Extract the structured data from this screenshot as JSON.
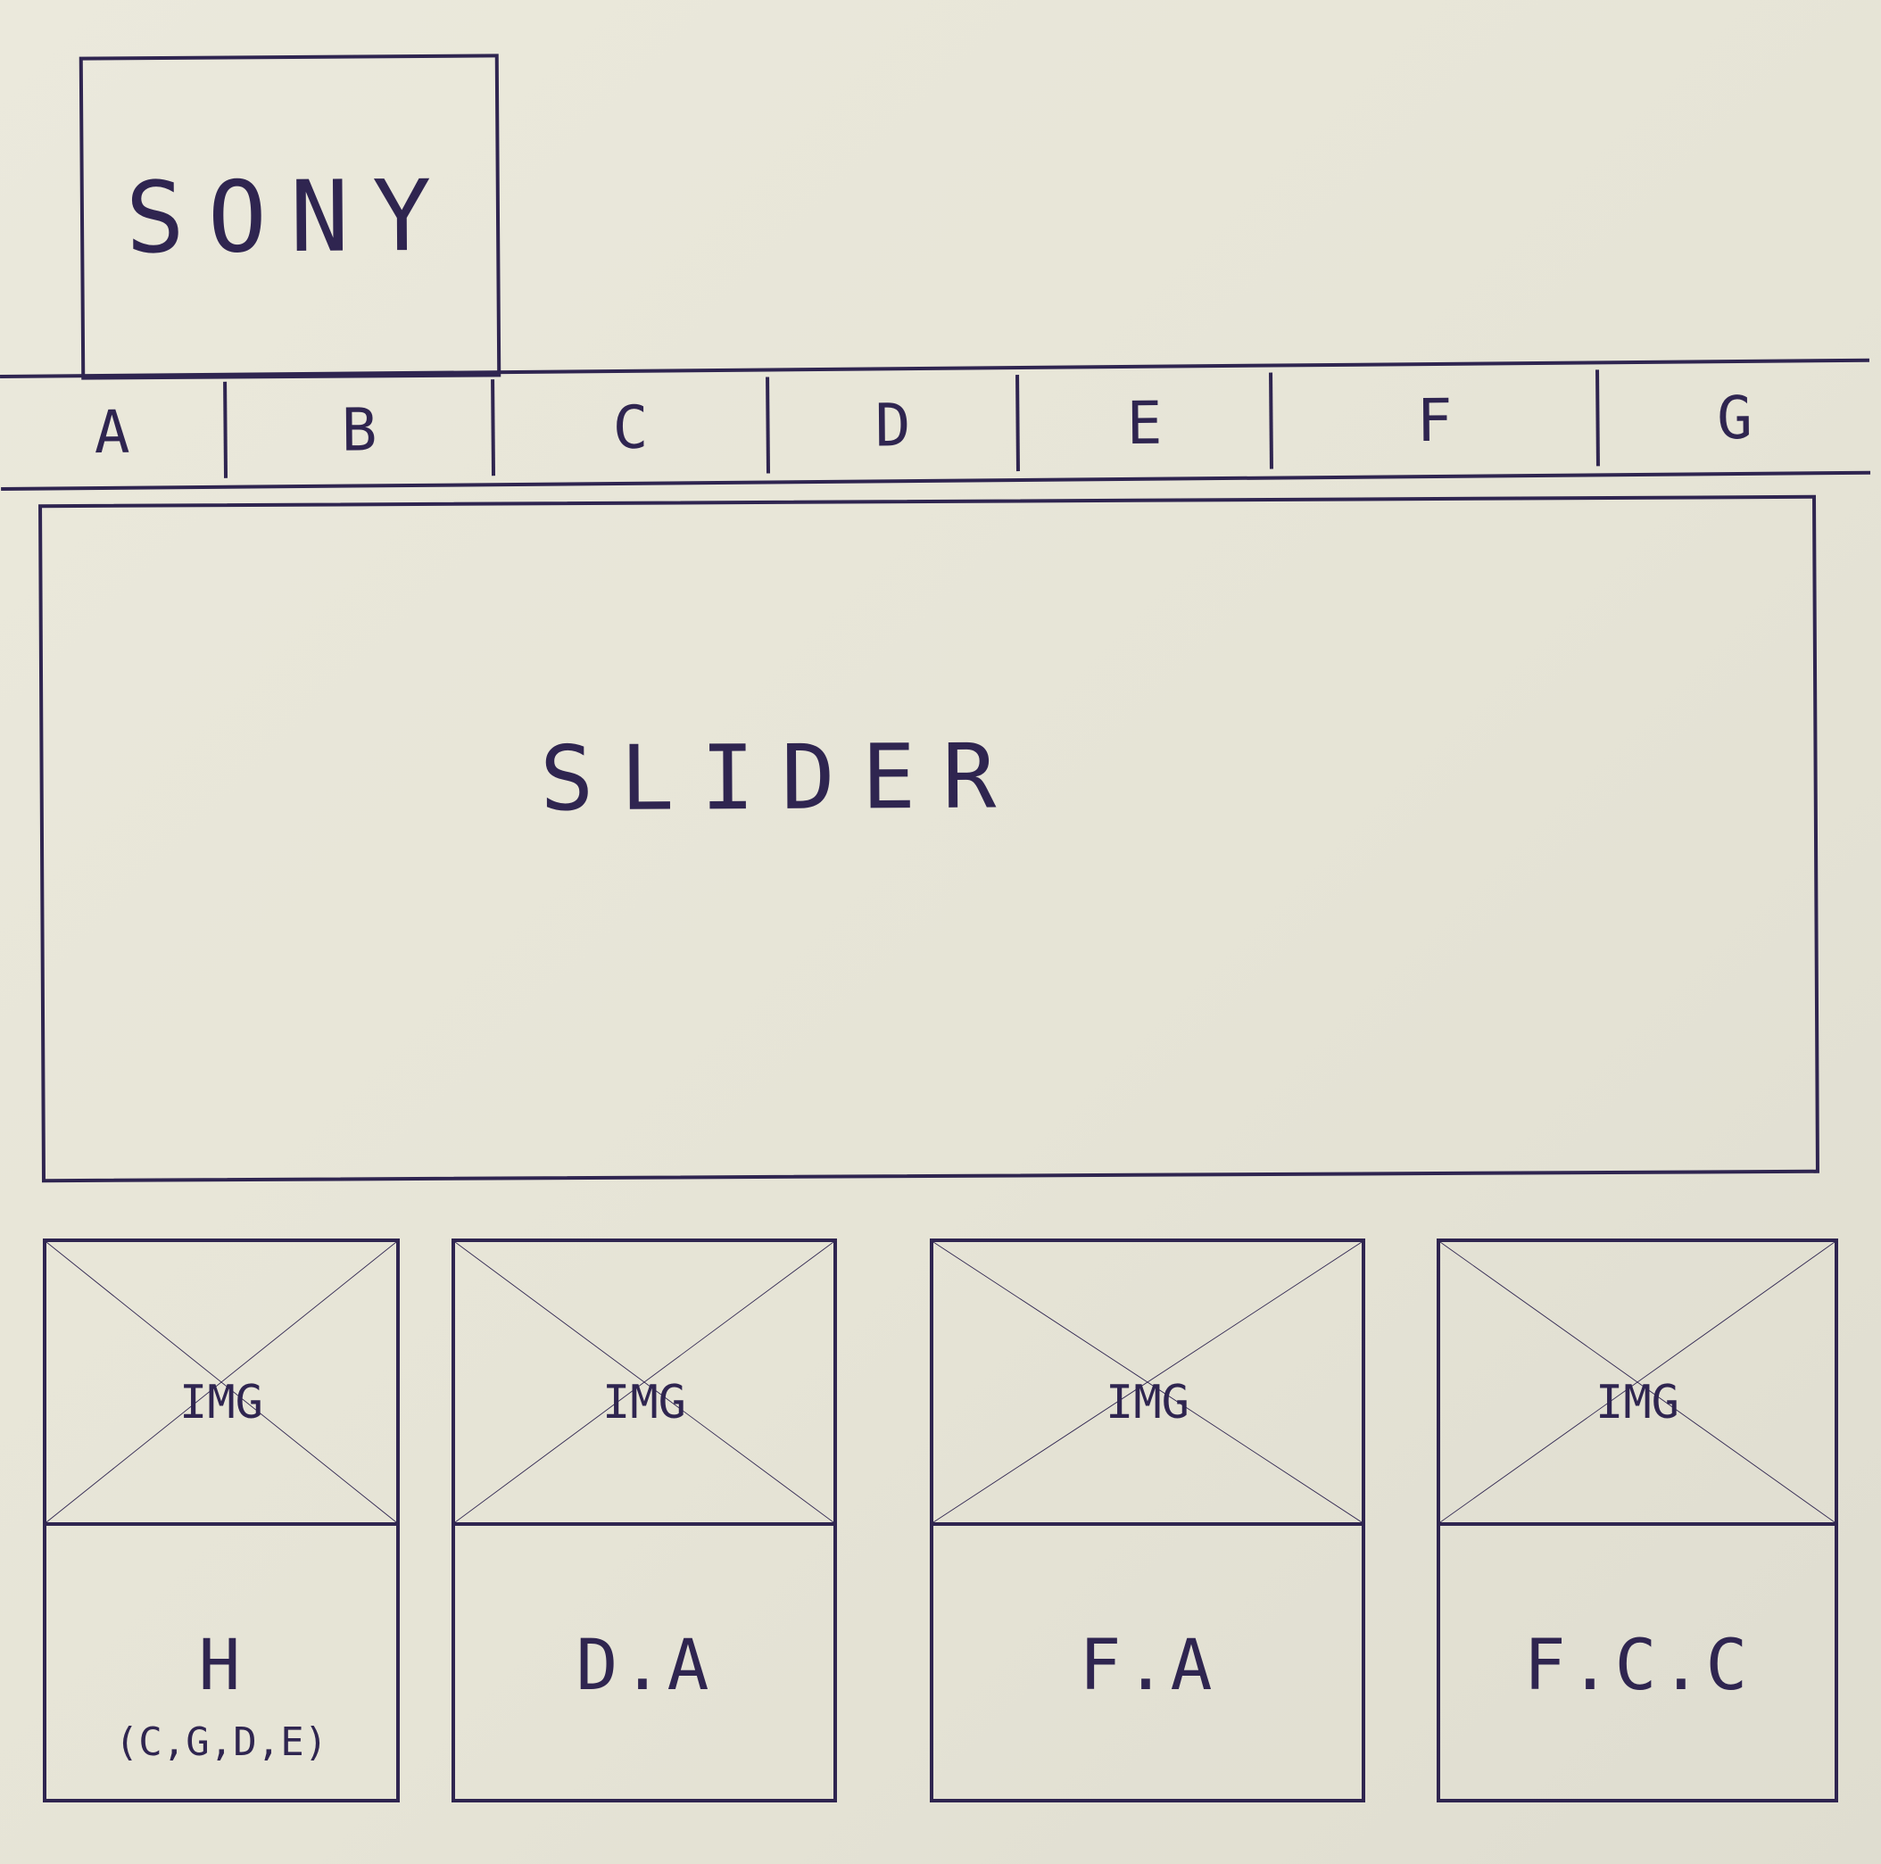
{
  "header": {
    "logo_text": "SONY"
  },
  "nav": {
    "items": [
      {
        "label": "A"
      },
      {
        "label": "B"
      },
      {
        "label": "C"
      },
      {
        "label": "D"
      },
      {
        "label": "E"
      },
      {
        "label": "F"
      },
      {
        "label": "G"
      }
    ]
  },
  "slider": {
    "label": "SLIDER"
  },
  "cards": [
    {
      "img_label": "IMG",
      "label": "H",
      "sublabel": "(C,G,D,E)"
    },
    {
      "img_label": "IMG",
      "label": "D.A"
    },
    {
      "img_label": "IMG",
      "label": "F.A"
    },
    {
      "img_label": "IMG",
      "label": "F.C.C"
    }
  ],
  "colors": {
    "ink": "#2f2550",
    "paper": "#e8e6d9"
  }
}
